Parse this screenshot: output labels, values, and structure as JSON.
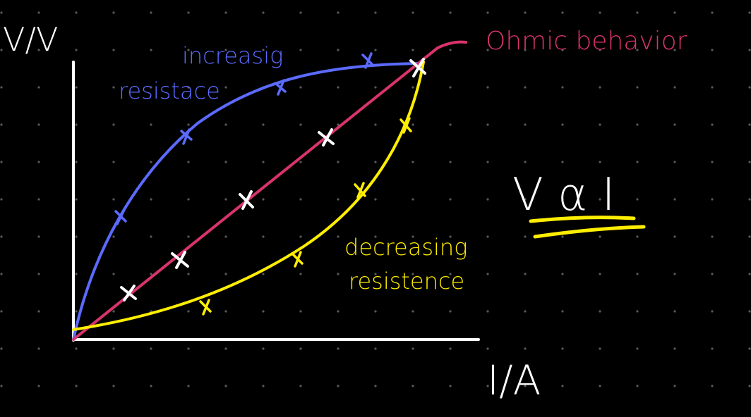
{
  "axes": {
    "y_label": "V/V",
    "x_label": "I/A",
    "color": "#ffffff"
  },
  "curves": {
    "increasing": {
      "label_line1": "increasig",
      "label_line2": "resistace",
      "color": "#5b6bff"
    },
    "ohmic": {
      "label": "Ohmic behavior",
      "color": "#d8346a"
    },
    "decreasing": {
      "label_line1": "decreasing",
      "label_line2": "resistence",
      "color": "#ffee00"
    }
  },
  "equation": {
    "text": "V α I",
    "color": "#ffffff",
    "underline_color": "#ffee00"
  },
  "background": {
    "color": "#000000",
    "dot_color": "#5a5a5a"
  }
}
